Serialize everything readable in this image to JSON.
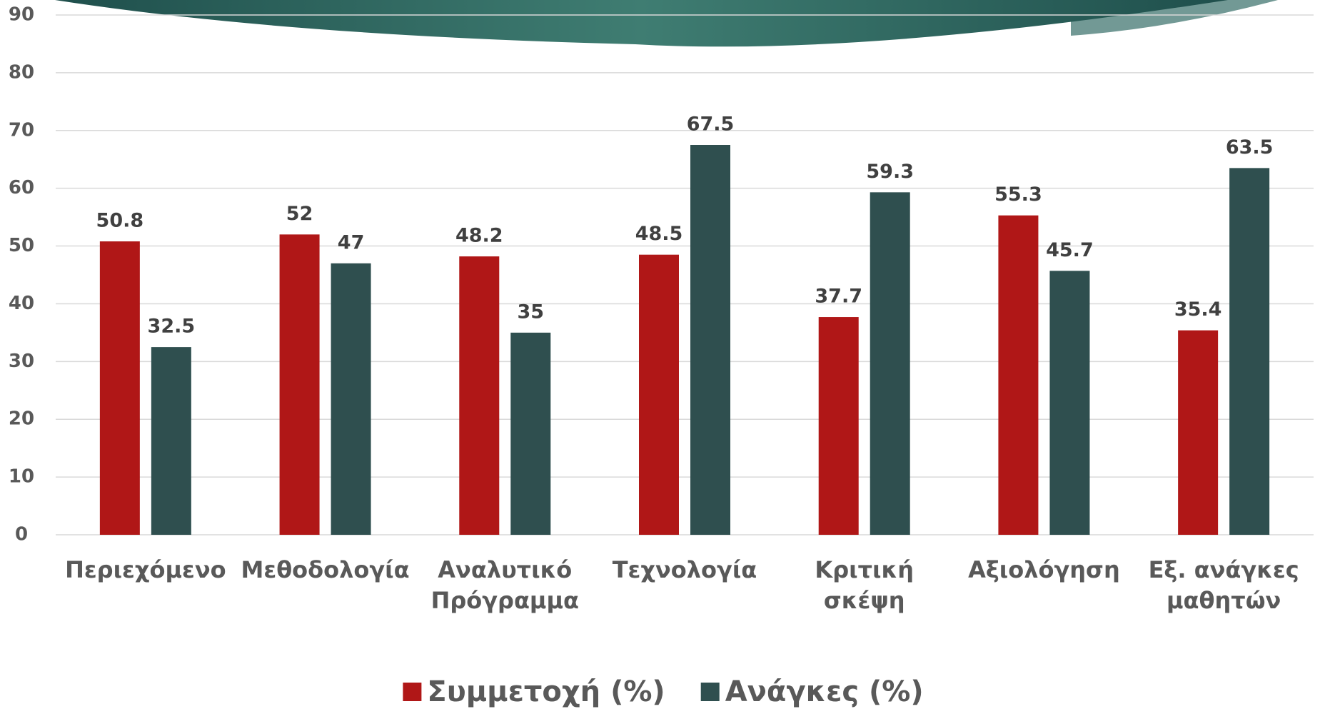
{
  "chart_data": {
    "type": "bar",
    "categories": [
      "Περιεχόμενο",
      "Μεθοδολογία",
      "Αναλυτικό Πρόγραμμα",
      "Τεχνολογία",
      "Κριτική σκέψη",
      "Αξιολόγηση",
      "Εξ. ανάγκες μαθητών"
    ],
    "series": [
      {
        "name": "Συμμετοχή (%)",
        "color": "#b01717",
        "values": [
          50.8,
          52,
          48.2,
          48.5,
          37.7,
          55.3,
          35.4
        ]
      },
      {
        "name": "Ανάγκες (%)",
        "color": "#2f4f4f",
        "values": [
          32.5,
          47,
          35,
          67.5,
          59.3,
          45.7,
          63.5
        ]
      }
    ],
    "ylim": [
      0,
      90
    ],
    "yticks": [
      0,
      10,
      20,
      30,
      40,
      50,
      60,
      70,
      80,
      90
    ],
    "grid": true,
    "legend": "bottom"
  }
}
